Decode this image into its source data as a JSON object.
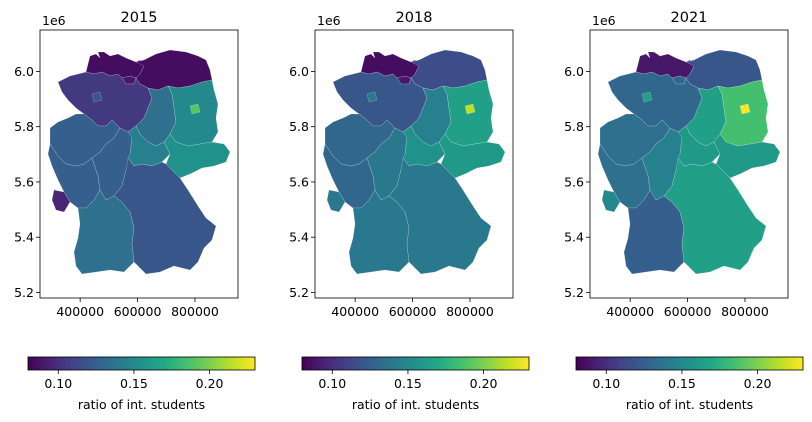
{
  "chart_data": [
    {
      "type": "choropleth",
      "title": "2015",
      "yaxis_offset_label": "1e6",
      "xticks": [
        400000,
        600000,
        800000
      ],
      "yticks": [
        5.2,
        5.4,
        5.6,
        5.8,
        6.0
      ],
      "colorbar": {
        "label": "ratio of int. students",
        "range": [
          0.08,
          0.23
        ],
        "ticks": [
          0.1,
          0.15,
          0.2
        ]
      },
      "regions": {
        "Schleswig-Holstein": 0.085,
        "Hamburg": 0.09,
        "Mecklenburg-Vorpommern": 0.085,
        "Bremen": 0.12,
        "Niedersachsen": 0.105,
        "Berlin": 0.19,
        "Brandenburg": 0.15,
        "Sachsen-Anhalt": 0.135,
        "Nordrhein-Westfalen": 0.125,
        "Hessen": 0.125,
        "Thüringen": 0.145,
        "Sachsen": 0.155,
        "Rheinland-Pfalz": 0.125,
        "Saarland": 0.095,
        "Baden-Württemberg": 0.135,
        "Bayern": 0.12
      }
    },
    {
      "type": "choropleth",
      "title": "2018",
      "yaxis_offset_label": "1e6",
      "xticks": [
        400000,
        600000,
        800000
      ],
      "yticks": [
        5.2,
        5.4,
        5.6,
        5.8,
        6.0
      ],
      "colorbar": {
        "label": "ratio of int. students",
        "range": [
          0.08,
          0.23
        ],
        "ticks": [
          0.1,
          0.15,
          0.2
        ]
      },
      "regions": {
        "Schleswig-Holstein": 0.085,
        "Hamburg": 0.09,
        "Mecklenburg-Vorpommern": 0.115,
        "Bremen": 0.14,
        "Niedersachsen": 0.12,
        "Berlin": 0.215,
        "Brandenburg": 0.165,
        "Sachsen-Anhalt": 0.145,
        "Nordrhein-Westfalen": 0.13,
        "Hessen": 0.14,
        "Thüringen": 0.155,
        "Sachsen": 0.16,
        "Rheinland-Pfalz": 0.13,
        "Saarland": 0.14,
        "Baden-Württemberg": 0.14,
        "Bayern": 0.14
      }
    },
    {
      "type": "choropleth",
      "title": "2021",
      "yaxis_offset_label": "1e6",
      "xticks": [
        400000,
        600000,
        800000
      ],
      "yticks": [
        5.2,
        5.4,
        5.6,
        5.8,
        6.0
      ],
      "colorbar": {
        "label": "ratio of int. students",
        "range": [
          0.08,
          0.23
        ],
        "ticks": [
          0.1,
          0.15,
          0.2
        ]
      },
      "regions": {
        "Schleswig-Holstein": 0.09,
        "Hamburg": 0.13,
        "Mecklenburg-Vorpommern": 0.12,
        "Bremen": 0.165,
        "Niedersachsen": 0.13,
        "Berlin": 0.23,
        "Brandenburg": 0.185,
        "Sachsen-Anhalt": 0.165,
        "Nordrhein-Westfalen": 0.135,
        "Hessen": 0.145,
        "Thüringen": 0.16,
        "Sachsen": 0.16,
        "Rheinland-Pfalz": 0.135,
        "Saarland": 0.15,
        "Baden-Württemberg": 0.125,
        "Bayern": 0.165
      }
    }
  ]
}
